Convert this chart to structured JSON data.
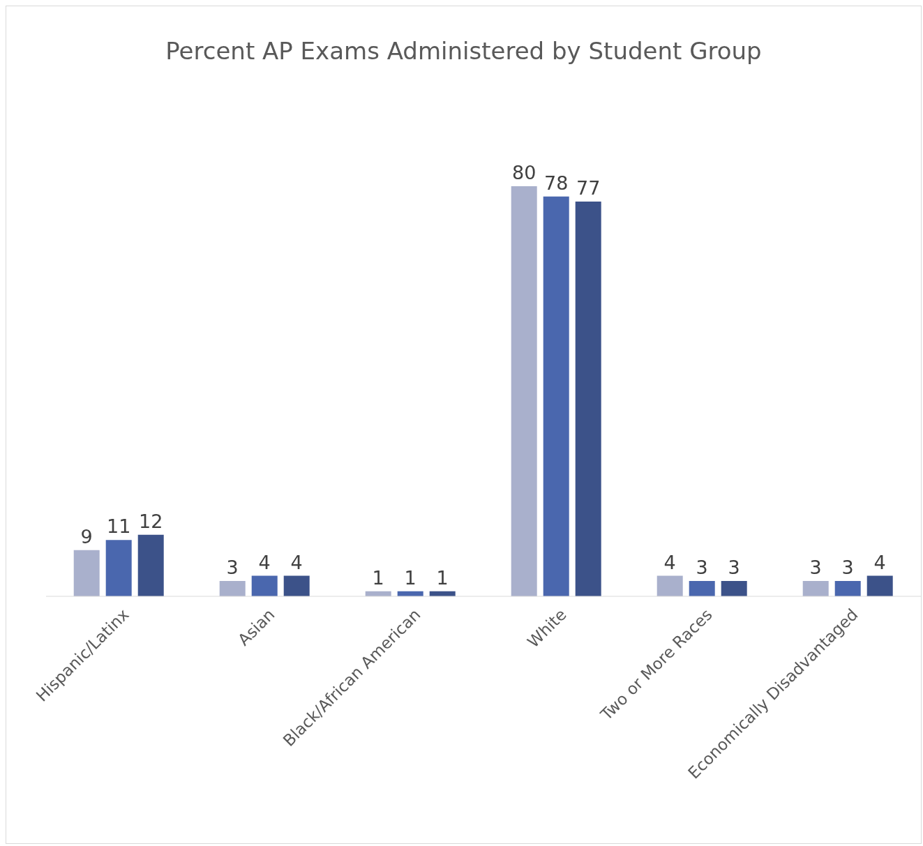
{
  "chart_data": {
    "type": "bar",
    "title": "Percent AP Exams Administered by Student Group",
    "categories": [
      "Hispanic/Latinx",
      "Asian",
      "Black/African American",
      "White",
      "Two or More Races",
      "Economically Disadvantaged"
    ],
    "series": [
      {
        "color": "#a9b0cc",
        "values": [
          9,
          3,
          1,
          80,
          4,
          3
        ]
      },
      {
        "color": "#4a67ae",
        "values": [
          11,
          4,
          1,
          78,
          3,
          3
        ]
      },
      {
        "color": "#3c5289",
        "values": [
          12,
          4,
          1,
          77,
          3,
          4
        ]
      }
    ],
    "data_labels": true
  }
}
